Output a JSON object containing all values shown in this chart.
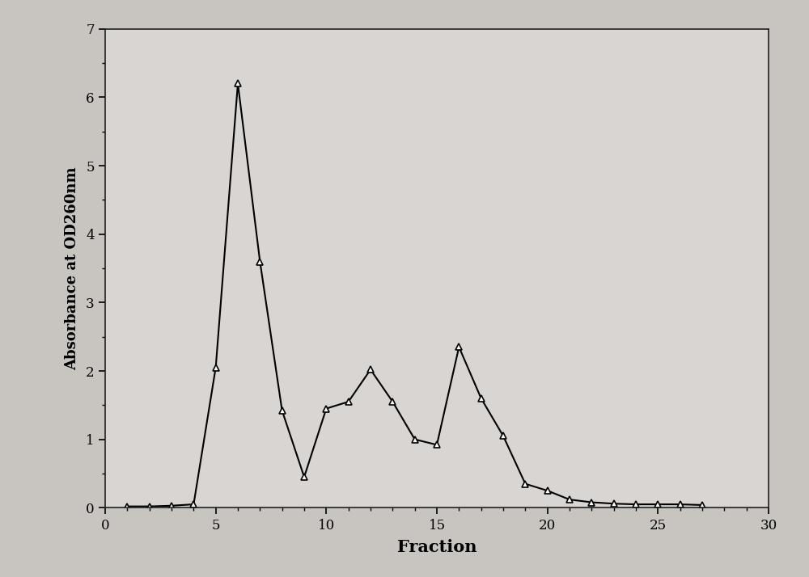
{
  "x": [
    1,
    2,
    3,
    4,
    5,
    6,
    7,
    8,
    9,
    10,
    11,
    12,
    13,
    14,
    15,
    16,
    17,
    18,
    19,
    20,
    21,
    22,
    23,
    24,
    25,
    26,
    27
  ],
  "y": [
    0.02,
    0.02,
    0.03,
    0.05,
    2.05,
    6.2,
    3.6,
    1.42,
    0.45,
    1.45,
    1.55,
    2.02,
    1.55,
    1.0,
    0.92,
    2.35,
    1.6,
    1.05,
    0.35,
    0.25,
    0.12,
    0.08,
    0.06,
    0.05,
    0.05,
    0.05,
    0.04
  ],
  "xlim": [
    0,
    30
  ],
  "ylim": [
    0,
    7
  ],
  "xticks": [
    0,
    5,
    10,
    15,
    20,
    25,
    30
  ],
  "yticks": [
    0,
    1,
    2,
    3,
    4,
    5,
    6,
    7
  ],
  "xlabel": "Fraction",
  "ylabel": "Absorbance at OD260nm",
  "line_color": "#000000",
  "marker": "^",
  "marker_facecolor": "white",
  "marker_edgecolor": "#000000",
  "marker_size": 6,
  "line_width": 1.5,
  "outer_bg_color": "#c8c4c0",
  "inner_bg_color": "#d8d5d2",
  "xlabel_fontsize": 15,
  "ylabel_fontsize": 13,
  "tick_fontsize": 12
}
